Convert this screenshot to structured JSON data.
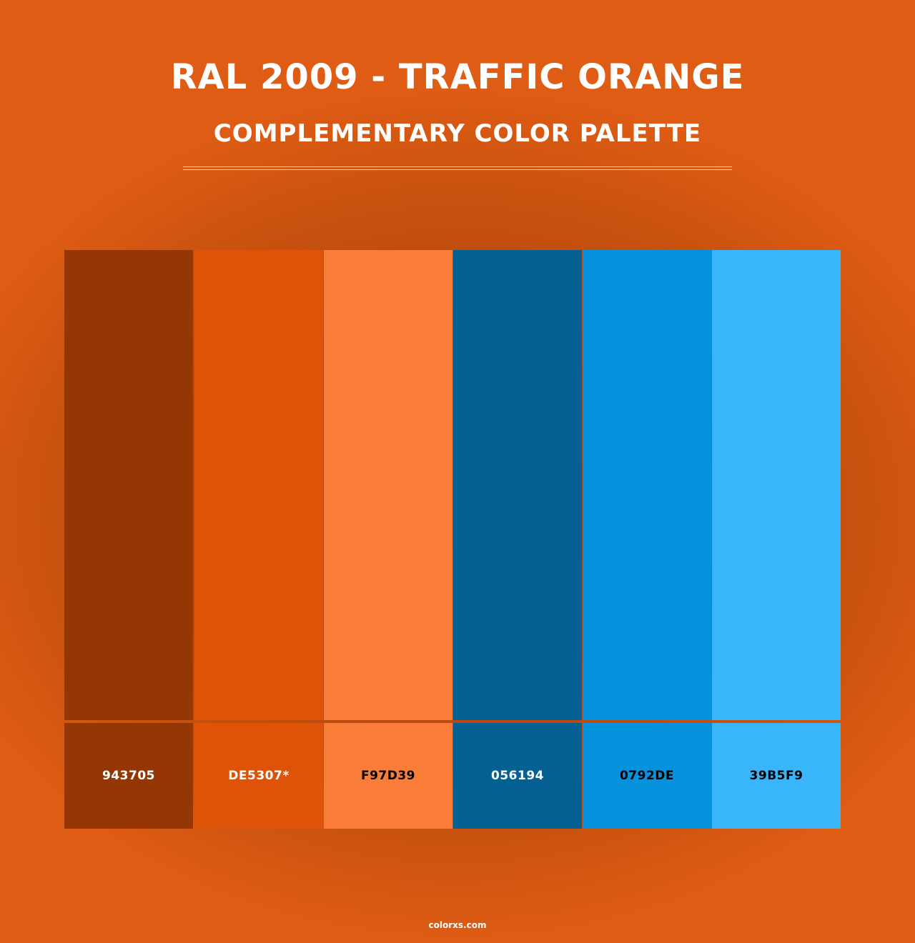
{
  "title": "RAL 2009 - TRAFFIC ORANGE",
  "subtitle": "COMPLEMENTARY COLOR PALETTE",
  "swatches": [
    {
      "label": "943705",
      "color": "#943705",
      "text_color": "#FFFFFF"
    },
    {
      "label": "DE5307*",
      "color": "#DE5307",
      "text_color": "#FFFFFF"
    },
    {
      "label": "F97D39",
      "color": "#F97D39",
      "text_color": "#000000"
    },
    {
      "label": "056194",
      "color": "#056194",
      "text_color": "#FFFFFF"
    },
    {
      "label": "0792DE",
      "color": "#0792DE",
      "text_color": "#000000"
    },
    {
      "label": "39B5F9",
      "color": "#39B5F9",
      "text_color": "#000000"
    }
  ],
  "footer": "colorxs.com"
}
